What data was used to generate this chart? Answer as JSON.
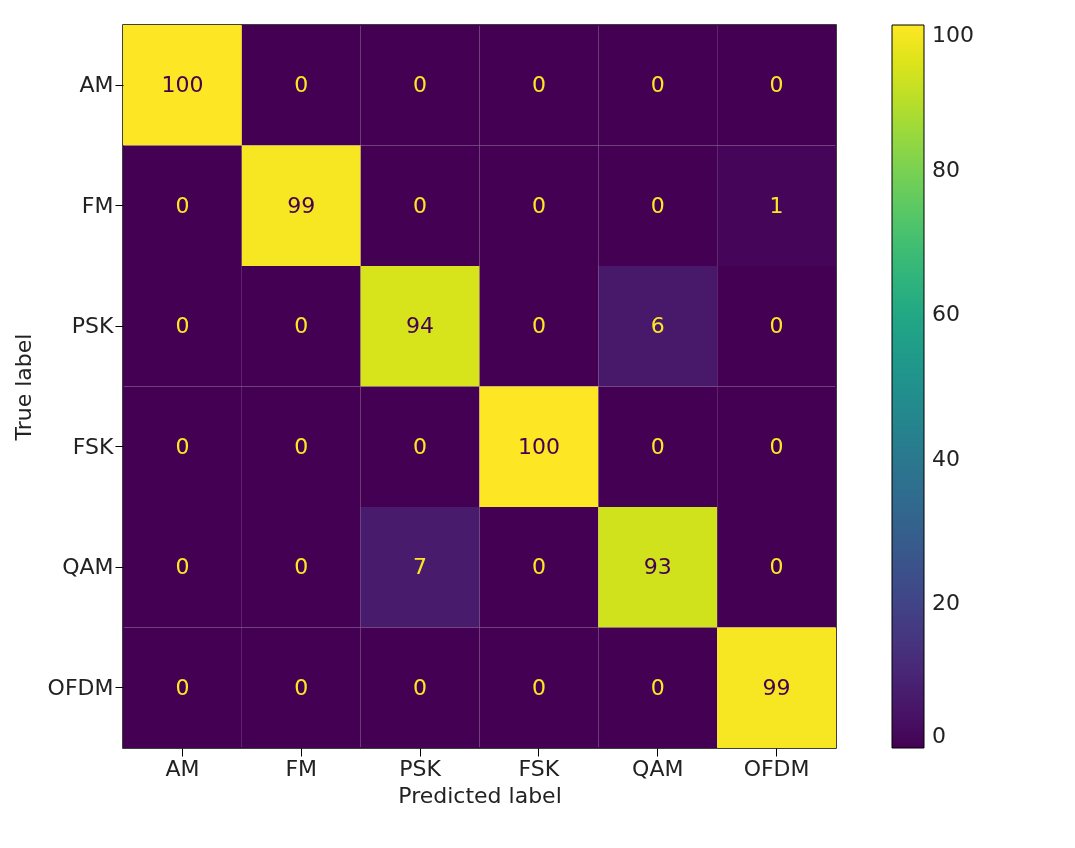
{
  "chart_data": {
    "type": "heatmap",
    "xlabel": "Predicted label",
    "ylabel": "True label",
    "categories": [
      "AM",
      "FM",
      "PSK",
      "FSK",
      "QAM",
      "OFDM"
    ],
    "y_categories": [
      "AM",
      "FM",
      "PSK",
      "FSK",
      "QAM",
      "OFDM"
    ],
    "cells": [
      [
        100,
        0,
        0,
        0,
        0,
        0
      ],
      [
        0,
        99,
        0,
        0,
        0,
        1
      ],
      [
        0,
        0,
        94,
        0,
        6,
        0
      ],
      [
        0,
        0,
        0,
        100,
        0,
        0
      ],
      [
        0,
        0,
        7,
        0,
        93,
        0
      ],
      [
        0,
        0,
        0,
        0,
        0,
        99
      ]
    ],
    "clim": [
      0,
      100
    ],
    "cticks": [
      0,
      20,
      40,
      60,
      80,
      100
    ],
    "data_labels": true
  }
}
